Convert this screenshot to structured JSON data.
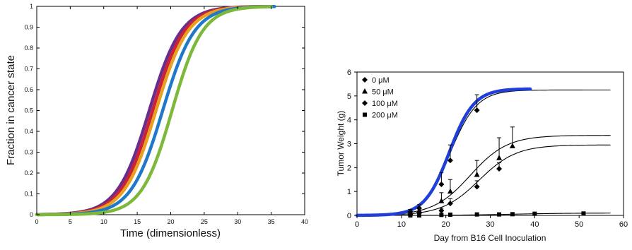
{
  "chart_data": [
    {
      "type": "line",
      "title": "",
      "xlabel": "Time (dimensionless)",
      "ylabel": "Fraction in cancer state",
      "xlim": [
        0,
        40
      ],
      "ylim": [
        0,
        1
      ],
      "x_ticks": [
        "0",
        "5",
        "10",
        "15",
        "20",
        "25",
        "30",
        "35",
        "40"
      ],
      "y_ticks": [
        "0",
        "0.1",
        "0.2",
        "0.3",
        "0.4",
        "0.5",
        "0.6",
        "0.7",
        "0.8",
        "0.9",
        "1"
      ],
      "grid": false,
      "series": [
        {
          "color": "#6b2d8c",
          "midpoint": 16.8,
          "steepness": 0.42,
          "x_end": 34
        },
        {
          "color": "#cc2233",
          "midpoint": 17.3,
          "steepness": 0.42,
          "x_end": 34.5
        },
        {
          "color": "#e8a020",
          "midpoint": 17.8,
          "steepness": 0.42,
          "x_end": 35
        },
        {
          "color": "#1f78c8",
          "midpoint": 18.8,
          "steepness": 0.42,
          "x_end": 35.5
        },
        {
          "color": "#7db83a",
          "midpoint": 20.2,
          "steepness": 0.44,
          "x_end": 35
        }
      ]
    },
    {
      "type": "scatter",
      "title": "",
      "xlabel": "Day from B16 Cell Inoculation",
      "ylabel": "Tumor Weight (g)",
      "xlim": [
        0,
        60
      ],
      "ylim": [
        0,
        6
      ],
      "x_ticks": [
        "0",
        "10",
        "20",
        "30",
        "40",
        "50",
        "60"
      ],
      "y_ticks": [
        "0",
        "1",
        "2",
        "3",
        "4",
        "5",
        "6"
      ],
      "grid": false,
      "legend_position": "top-left",
      "legend": [
        "0 μM",
        "50 μM",
        "100 μM",
        "200 μM"
      ],
      "series": [
        {
          "name": "0 μM",
          "marker": "diamond",
          "x": [
            12,
            14,
            19,
            21,
            27
          ],
          "y": [
            0.15,
            0.3,
            1.3,
            2.3,
            4.4
          ],
          "err": [
            0.1,
            0.15,
            0.5,
            0.65,
            0.65
          ]
        },
        {
          "name": "50 μM",
          "marker": "triangle",
          "x": [
            12,
            14,
            19,
            21,
            27,
            32,
            35
          ],
          "y": [
            0.1,
            0.2,
            0.6,
            1.0,
            1.7,
            2.4,
            2.9
          ],
          "err": [
            0.05,
            0.1,
            0.35,
            0.5,
            0.6,
            0.85,
            0.8
          ]
        },
        {
          "name": "100 μM",
          "marker": "diamond",
          "x": [
            12,
            14,
            19,
            21,
            27,
            32
          ],
          "y": [
            0.05,
            0.1,
            0.2,
            0.5,
            1.2,
            1.95
          ],
          "err": [
            0.03,
            0.05,
            0.1,
            0.2,
            0.25,
            0.25
          ]
        },
        {
          "name": "200 μM",
          "marker": "square",
          "x": [
            12,
            14,
            19,
            21,
            27,
            32,
            35,
            40,
            51
          ],
          "y": [
            0.0,
            0.0,
            0.02,
            0.03,
            0.04,
            0.04,
            0.05,
            0.07,
            0.08
          ],
          "err": [
            0,
            0,
            0,
            0,
            0,
            0,
            0,
            0,
            0
          ]
        }
      ],
      "fit_curves": [
        {
          "color": "#000000",
          "kind": "logistic",
          "max": 5.25,
          "midpoint": 21.0,
          "steepness": 0.33,
          "x_end": 57
        },
        {
          "color": "#000000",
          "kind": "logistic",
          "max": 3.35,
          "midpoint": 25.5,
          "steepness": 0.24,
          "x_end": 57
        },
        {
          "color": "#000000",
          "kind": "logistic",
          "max": 2.95,
          "midpoint": 27.5,
          "steepness": 0.24,
          "x_end": 57
        },
        {
          "color": "#000000",
          "kind": "logistic",
          "max": 0.1,
          "midpoint": 35.0,
          "steepness": 0.15,
          "x_end": 57
        },
        {
          "color": "#1f3fd8",
          "kind": "logistic",
          "max": 5.3,
          "midpoint": 20.8,
          "steepness": 0.36,
          "x_end": 39
        }
      ]
    }
  ]
}
